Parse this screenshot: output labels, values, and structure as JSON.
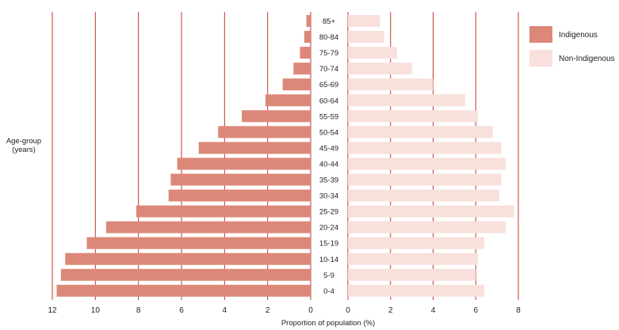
{
  "chart_data": {
    "type": "bar",
    "orientation": "horizontal-population-pyramid",
    "categories": [
      "85+",
      "80-84",
      "75-79",
      "70-74",
      "65-69",
      "60-64",
      "55-59",
      "50-54",
      "45-49",
      "40-44",
      "35-39",
      "30-34",
      "25-29",
      "20-24",
      "15-19",
      "10-14",
      "5-9",
      "0-4"
    ],
    "series": [
      {
        "name": "Indigenous",
        "color": "#dc8879",
        "side": "left",
        "values": [
          0.2,
          0.3,
          0.5,
          0.8,
          1.3,
          2.1,
          3.2,
          4.3,
          5.2,
          6.2,
          6.5,
          6.6,
          8.1,
          9.5,
          10.4,
          11.4,
          11.6,
          11.8
        ]
      },
      {
        "name": "Non-Indigenous",
        "color": "#f8e0dc",
        "side": "right",
        "values": [
          1.5,
          1.7,
          2.3,
          3.0,
          4.0,
          5.5,
          6.1,
          6.8,
          7.2,
          7.4,
          7.2,
          7.1,
          7.8,
          7.4,
          6.4,
          6.1,
          6.0,
          6.4
        ]
      }
    ],
    "left_axis": {
      "ticks": [
        "12",
        "10",
        "8",
        "6",
        "4",
        "2",
        "0"
      ],
      "range": [
        0,
        12
      ]
    },
    "right_axis": {
      "ticks": [
        "0",
        "2",
        "4",
        "6",
        "8"
      ],
      "range": [
        0,
        8
      ]
    },
    "ylabel_line1": "Age-group",
    "ylabel_line2": "(years)",
    "xlabel": "Proportion of population (%)",
    "title": "",
    "legend_position": "top-right",
    "grid": true,
    "grid_color": "#c0392b"
  }
}
